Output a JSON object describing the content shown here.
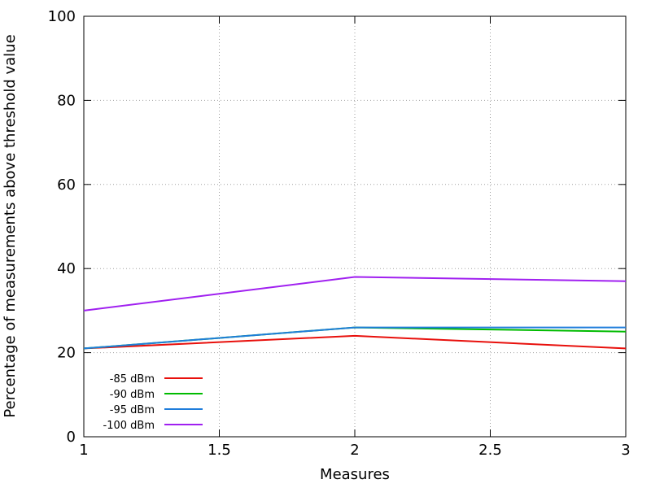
{
  "chart_data": {
    "type": "line",
    "xlabel": "Measures",
    "ylabel": "Percentage of measurements above threshold value",
    "xlim": [
      1,
      3
    ],
    "ylim": [
      0,
      100
    ],
    "x_ticks": [
      "1",
      "1.5",
      "2",
      "2.5",
      "3"
    ],
    "y_ticks": [
      "0",
      "20",
      "40",
      "60",
      "80",
      "100"
    ],
    "grid": true,
    "legend_position": "bottom-left",
    "x": [
      1,
      2,
      3
    ],
    "series": [
      {
        "name": "-85 dBm",
        "color": "#e8100c",
        "values": [
          21,
          24,
          21
        ]
      },
      {
        "name": "-90 dBm",
        "color": "#00bb00",
        "values": [
          21,
          26,
          25
        ]
      },
      {
        "name": "-95 dBm",
        "color": "#1f7ddb",
        "values": [
          21,
          26,
          26
        ]
      },
      {
        "name": "-100 dBm",
        "color": "#a020f0",
        "values": [
          30,
          38,
          37
        ]
      }
    ]
  }
}
